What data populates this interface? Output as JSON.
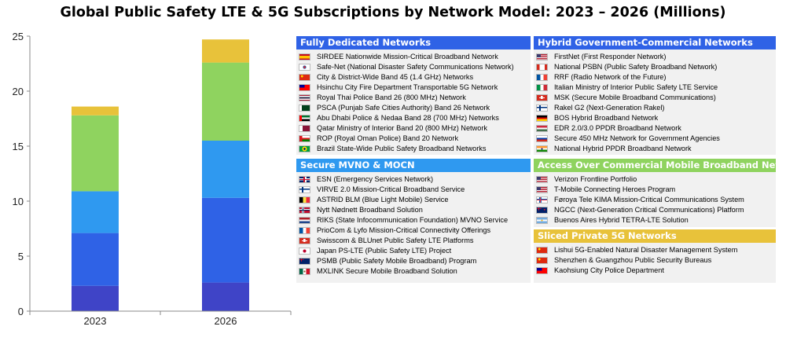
{
  "title": "Global Public Safety LTE & 5G Subscriptions by Network Model: 2023 – 2026 (Millions)",
  "chart_data": {
    "type": "bar",
    "stacked": true,
    "categories": [
      "2023",
      "2026"
    ],
    "ylim": [
      0,
      25
    ],
    "yticks": [
      0,
      5,
      10,
      15,
      20,
      25
    ],
    "grid": false,
    "series": [
      {
        "name": "Sliced Private 5G Networks",
        "color": "#3f44c7",
        "values": [
          2.3,
          2.6
        ]
      },
      {
        "name": "Secure MVNO & MOCN",
        "color": "#2f62e6",
        "values": [
          4.8,
          7.7
        ]
      },
      {
        "name": "Access Over Commercial Mobile Broadband Networks",
        "color": "#2f99f0",
        "values": [
          3.8,
          5.2
        ]
      },
      {
        "name": "Hybrid Government-Commercial Networks",
        "color": "#8fd35f",
        "values": [
          6.9,
          7.1
        ]
      },
      {
        "name": "Fully Dedicated Networks",
        "color": "#e8c23a",
        "values": [
          0.8,
          2.1
        ]
      }
    ]
  },
  "panels": [
    {
      "key": "fully_dedicated",
      "header": "Fully Dedicated Networks",
      "color": "#2f62e6",
      "items": [
        {
          "flag": "spain",
          "label": "SIRDEE Nationwide Mission-Critical Broadband Network"
        },
        {
          "flag": "korea",
          "label": "Safe-Net (National Disaster Safety Communications Network)"
        },
        {
          "flag": "china",
          "label": "City & District-Wide Band 45 (1.4 GHz) Networks"
        },
        {
          "flag": "taiwan",
          "label": "Hsinchu City Fire Department Transportable 5G Network"
        },
        {
          "flag": "thailand",
          "label": "Royal Thai Police Band 26 (800 MHz) Network"
        },
        {
          "flag": "pakistan",
          "label": "PSCA (Punjab Safe Cities Authority) Band 26 Network"
        },
        {
          "flag": "uae",
          "label": "Abu Dhabi Police & Nedaa Band 28 (700 MHz) Networks"
        },
        {
          "flag": "qatar",
          "label": "Qatar Ministry of Interior Band 20 (800 MHz) Network"
        },
        {
          "flag": "oman",
          "label": "ROP (Royal Oman Police) Band 20 Network"
        },
        {
          "flag": "brazil",
          "label": "Brazil State-Wide Public Safety Broadband Networks"
        }
      ]
    },
    {
      "key": "hybrid",
      "header": "Hybrid Government-Commercial Networks",
      "color": "#2f62e6",
      "items": [
        {
          "flag": "usa",
          "label": "FirstNet (First Responder Network)"
        },
        {
          "flag": "canada",
          "label": "National PSBN (Public Safety Broadband Network)"
        },
        {
          "flag": "france",
          "label": "RRF (Radio Network of the Future)"
        },
        {
          "flag": "italy",
          "label": "Italian Ministry of Interior Public Safety LTE Service"
        },
        {
          "flag": "switzerland",
          "label": "MSK (Secure Mobile Broadband Communications)"
        },
        {
          "flag": "finland",
          "label": "Rakel G2 (Next-Generation Rakel)"
        },
        {
          "flag": "germany",
          "label": "BOS Hybrid Broadband Network"
        },
        {
          "flag": "hungary",
          "label": "EDR 2.0/3.0 PPDR Broadband Network"
        },
        {
          "flag": "russia",
          "label": "Secure 450 MHz Network for Government Agencies"
        },
        {
          "flag": "india",
          "label": "National Hybrid PPDR Broadband Network"
        }
      ]
    },
    {
      "key": "secure_mvno",
      "header": "Secure MVNO & MOCN",
      "color": "#2f99f0",
      "items": [
        {
          "flag": "uk",
          "label": "ESN (Emergency Services Network)"
        },
        {
          "flag": "finland",
          "label": "VIRVE 2.0 Mission-Critical Broadband Service"
        },
        {
          "flag": "belgium",
          "label": "ASTRID BLM (Blue Light Mobile) Service"
        },
        {
          "flag": "norway",
          "label": "Nytt Nødnett Broadband Solution"
        },
        {
          "flag": "netherlands",
          "label": "RIKS (State Infocommunication Foundation) MVNO Service"
        },
        {
          "flag": "france",
          "label": "PrioCom & Lyfo Mission-Critical Connectivity Offerings"
        },
        {
          "flag": "switzerland",
          "label": "Swisscom & BLUnet Public Safety LTE Platforms"
        },
        {
          "flag": "japan",
          "label": "Japan PS-LTE (Public Safety LTE) Project"
        },
        {
          "flag": "australia",
          "label": "PSMB (Public Safety Mobile Broadband) Program"
        },
        {
          "flag": "mexico",
          "label": "MXLINK Secure Mobile Broadband Solution"
        }
      ]
    },
    {
      "key": "commercial",
      "header": "Access Over Commercial Mobile Broadband Networks",
      "color": "#8fd35f",
      "items": [
        {
          "flag": "usa",
          "label": "Verizon Frontline Portfolio"
        },
        {
          "flag": "usa",
          "label": "T-Mobile Connecting Heroes Program"
        },
        {
          "flag": "faroe",
          "label": "Føroya Tele KIMA Mission-Critical Communications System"
        },
        {
          "flag": "newzealand",
          "label": "NGCC (Next-Generation Critical Communications) Platform"
        },
        {
          "flag": "argentina",
          "label": "Buenos Aires Hybrid TETRA-LTE Solution"
        }
      ]
    },
    {
      "key": "sliced",
      "header": "Sliced Private 5G Networks",
      "color": "#e8c23a",
      "items": [
        {
          "flag": "china",
          "label": "Lishui 5G-Enabled Natural Disaster Management System"
        },
        {
          "flag": "china",
          "label": "Shenzhen & Guangzhou Public Security Bureaus"
        },
        {
          "flag": "taiwan",
          "label": "Kaohsiung City Police Department"
        }
      ]
    }
  ]
}
